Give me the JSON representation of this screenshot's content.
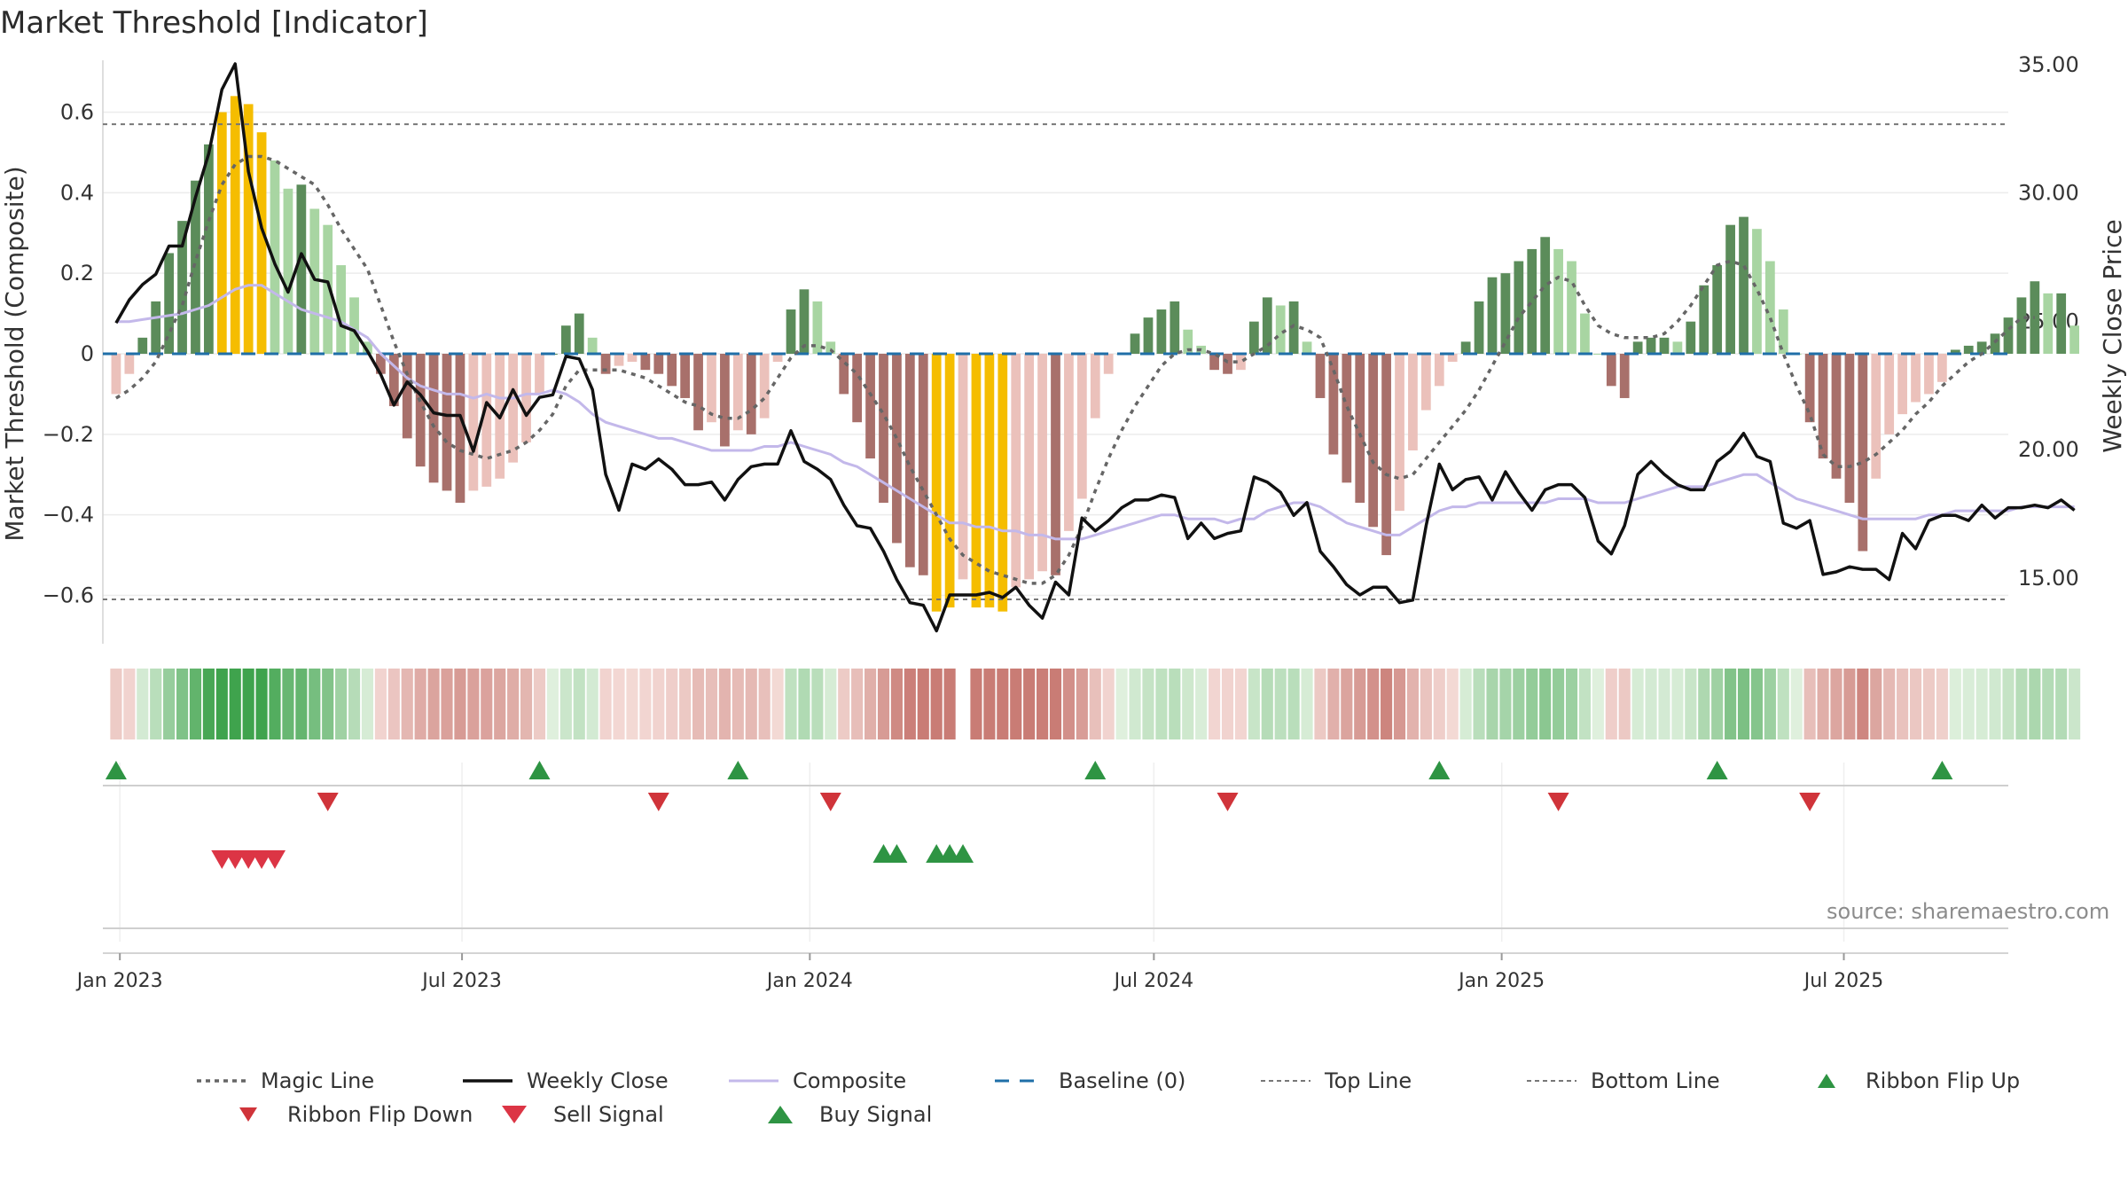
{
  "title": "Market Threshold [Indicator]",
  "source_text": "source: sharemaestro.com",
  "axes": {
    "left_label": "Market Threshold (Composite)",
    "right_label": "Weekly Close Price",
    "left_ticks": [
      "0.6",
      "0.4",
      "0.2",
      "0",
      "−0.2",
      "−0.4",
      "−0.6"
    ],
    "right_ticks": [
      "35.00",
      "30.00",
      "25.00",
      "20.00",
      "15.00"
    ],
    "x_ticks": [
      "Jan 2023",
      "Jul 2023",
      "Jan 2024",
      "Jul 2024",
      "Jan 2025",
      "Jul 2025"
    ]
  },
  "legend": [
    {
      "key": "magic",
      "label": "Magic Line"
    },
    {
      "key": "close",
      "label": "Weekly Close"
    },
    {
      "key": "composite",
      "label": "Composite"
    },
    {
      "key": "baseline",
      "label": "Baseline (0)"
    },
    {
      "key": "top",
      "label": "Top Line"
    },
    {
      "key": "bottom",
      "label": "Bottom Line"
    },
    {
      "key": "flipup",
      "label": "Ribbon Flip Up"
    },
    {
      "key": "flipdown",
      "label": "Ribbon Flip Down"
    },
    {
      "key": "sell",
      "label": "Sell Signal"
    },
    {
      "key": "buy",
      "label": "Buy Signal"
    }
  ],
  "colors": {
    "strong_green": "#5b8c5a",
    "light_green": "#a8d5a2",
    "strong_red": "#a8706b",
    "light_red": "#ebc1bb",
    "extreme": "#f5bd00",
    "close": "#111111",
    "composite": "#c3b8ea",
    "magic": "#666666",
    "baseline": "#1f6fa8",
    "threshold": "#777777",
    "up": "#2e9443",
    "down": "#d0343a"
  },
  "chart_data": {
    "type": "bar",
    "x_range": [
      "2022-12-23",
      "2025-09-26"
    ],
    "left_ylim": [
      -0.72,
      0.72
    ],
    "right_ylim": [
      12.4,
      35.0
    ],
    "threshold_top": 0.57,
    "threshold_bottom": -0.61,
    "series": [
      {
        "name": "Market Threshold (Composite)",
        "values": [
          -0.1,
          -0.05,
          0.04,
          0.13,
          0.25,
          0.33,
          0.43,
          0.52,
          0.6,
          0.64,
          0.62,
          0.55,
          0.48,
          0.41,
          0.42,
          0.36,
          0.32,
          0.22,
          0.14,
          0.03,
          -0.05,
          -0.13,
          -0.21,
          -0.28,
          -0.32,
          -0.34,
          -0.37,
          -0.34,
          -0.33,
          -0.31,
          -0.27,
          -0.22,
          -0.1,
          0.0,
          0.07,
          0.1,
          0.04,
          -0.05,
          -0.03,
          -0.02,
          -0.04,
          -0.05,
          -0.08,
          -0.11,
          -0.19,
          -0.17,
          -0.23,
          -0.19,
          -0.2,
          -0.16,
          -0.02,
          0.11,
          0.16,
          0.13,
          0.03,
          -0.1,
          -0.17,
          -0.26,
          -0.37,
          -0.47,
          -0.53,
          -0.55,
          -0.64,
          -0.63,
          -0.56,
          -0.63,
          -0.63,
          -0.64,
          -0.58,
          -0.56,
          -0.54,
          -0.55,
          -0.44,
          -0.36,
          -0.16,
          -0.05,
          0.0,
          0.05,
          0.09,
          0.11,
          0.13,
          0.06,
          0.02,
          -0.04,
          -0.05,
          -0.04,
          0.08,
          0.14,
          0.12,
          0.13,
          0.03,
          -0.11,
          -0.25,
          -0.32,
          -0.37,
          -0.43,
          -0.5,
          -0.39,
          -0.24,
          -0.14,
          -0.08,
          -0.02,
          0.03,
          0.13,
          0.19,
          0.2,
          0.23,
          0.26,
          0.29,
          0.26,
          0.23,
          0.1,
          0.0,
          -0.08,
          -0.11,
          0.03,
          0.04,
          0.04,
          0.03,
          0.08,
          0.17,
          0.22,
          0.32,
          0.34,
          0.31,
          0.23,
          0.11,
          0.0,
          -0.17,
          -0.26,
          -0.31,
          -0.37,
          -0.49,
          -0.31,
          -0.2,
          -0.15,
          -0.12,
          -0.1,
          -0.07,
          0.01,
          0.02,
          0.03,
          0.05,
          0.09,
          0.14,
          0.18,
          0.15,
          0.15,
          0.07
        ]
      },
      {
        "name": "Weekly Close",
        "values": [
          24.9,
          25.8,
          26.4,
          26.8,
          27.9,
          27.9,
          29.8,
          31.5,
          34.0,
          35.0,
          30.8,
          28.6,
          27.2,
          26.1,
          27.6,
          26.6,
          26.5,
          24.8,
          24.6,
          23.8,
          22.9,
          21.7,
          22.6,
          22.1,
          21.4,
          21.3,
          21.3,
          19.9,
          21.8,
          21.2,
          22.3,
          21.3,
          22.0,
          22.1,
          23.6,
          23.5,
          22.3,
          19.0,
          17.6,
          19.4,
          19.2,
          19.6,
          19.2,
          18.6,
          18.6,
          18.7,
          18.0,
          18.8,
          19.3,
          19.4,
          19.4,
          20.7,
          19.5,
          19.2,
          18.8,
          17.8,
          17.0,
          16.9,
          16.0,
          14.9,
          14.0,
          13.9,
          12.9,
          14.3,
          14.3,
          14.3,
          14.4,
          14.2,
          14.6,
          13.9,
          13.4,
          14.8,
          14.3,
          17.3,
          16.8,
          17.2,
          17.7,
          18.0,
          18.0,
          18.2,
          18.1,
          16.5,
          17.1,
          16.5,
          16.7,
          16.8,
          18.9,
          18.7,
          18.3,
          17.4,
          17.9,
          16.0,
          15.4,
          14.7,
          14.3,
          14.6,
          14.6,
          14.0,
          14.1,
          17.0,
          19.4,
          18.4,
          18.8,
          18.9,
          18.0,
          19.1,
          18.3,
          17.6,
          18.4,
          18.6,
          18.6,
          18.1,
          16.4,
          15.9,
          17.0,
          19.0,
          19.5,
          19.0,
          18.6,
          18.4,
          18.4,
          19.5,
          19.9,
          20.6,
          19.7,
          19.5,
          17.1,
          16.9,
          17.2,
          15.1,
          15.2,
          15.4,
          15.3,
          15.3,
          14.9,
          16.7,
          16.1,
          17.2,
          17.4,
          17.4,
          17.2,
          17.8,
          17.3,
          17.7,
          17.7,
          17.8,
          17.7,
          18.0,
          17.6
        ]
      },
      {
        "name": "Composite",
        "values": [
          0.08,
          0.08,
          0.085,
          0.09,
          0.095,
          0.1,
          0.11,
          0.12,
          0.14,
          0.16,
          0.17,
          0.17,
          0.15,
          0.13,
          0.11,
          0.1,
          0.09,
          0.08,
          0.06,
          0.04,
          0.0,
          -0.03,
          -0.06,
          -0.08,
          -0.09,
          -0.1,
          -0.1,
          -0.11,
          -0.1,
          -0.11,
          -0.11,
          -0.1,
          -0.1,
          -0.09,
          -0.1,
          -0.12,
          -0.15,
          -0.17,
          -0.18,
          -0.19,
          -0.2,
          -0.21,
          -0.21,
          -0.22,
          -0.23,
          -0.24,
          -0.24,
          -0.24,
          -0.24,
          -0.23,
          -0.23,
          -0.22,
          -0.23,
          -0.24,
          -0.25,
          -0.27,
          -0.28,
          -0.3,
          -0.32,
          -0.34,
          -0.36,
          -0.38,
          -0.4,
          -0.42,
          -0.42,
          -0.43,
          -0.43,
          -0.44,
          -0.44,
          -0.45,
          -0.45,
          -0.46,
          -0.46,
          -0.46,
          -0.45,
          -0.44,
          -0.43,
          -0.42,
          -0.41,
          -0.4,
          -0.4,
          -0.41,
          -0.41,
          -0.41,
          -0.42,
          -0.41,
          -0.41,
          -0.39,
          -0.38,
          -0.37,
          -0.37,
          -0.38,
          -0.4,
          -0.42,
          -0.43,
          -0.44,
          -0.45,
          -0.45,
          -0.43,
          -0.41,
          -0.39,
          -0.38,
          -0.38,
          -0.37,
          -0.37,
          -0.37,
          -0.37,
          -0.37,
          -0.37,
          -0.36,
          -0.36,
          -0.36,
          -0.37,
          -0.37,
          -0.37,
          -0.36,
          -0.35,
          -0.34,
          -0.33,
          -0.33,
          -0.33,
          -0.32,
          -0.31,
          -0.3,
          -0.3,
          -0.32,
          -0.34,
          -0.36,
          -0.37,
          -0.38,
          -0.39,
          -0.4,
          -0.41,
          -0.41,
          -0.41,
          -0.41,
          -0.41,
          -0.4,
          -0.4,
          -0.39,
          -0.39,
          -0.39,
          -0.39,
          -0.39,
          -0.38,
          -0.38,
          -0.38,
          -0.38,
          -0.38
        ]
      },
      {
        "name": "Magic Line",
        "values": [
          -0.11,
          -0.09,
          -0.06,
          -0.02,
          0.05,
          0.12,
          0.23,
          0.33,
          0.42,
          0.47,
          0.49,
          0.49,
          0.48,
          0.46,
          0.44,
          0.42,
          0.37,
          0.31,
          0.26,
          0.21,
          0.12,
          0.03,
          -0.05,
          -0.12,
          -0.18,
          -0.22,
          -0.24,
          -0.25,
          -0.26,
          -0.25,
          -0.24,
          -0.22,
          -0.19,
          -0.15,
          -0.08,
          -0.04,
          -0.04,
          -0.04,
          -0.04,
          -0.05,
          -0.06,
          -0.08,
          -0.1,
          -0.12,
          -0.13,
          -0.15,
          -0.16,
          -0.16,
          -0.14,
          -0.11,
          -0.06,
          -0.01,
          0.02,
          0.02,
          0.01,
          -0.02,
          -0.05,
          -0.1,
          -0.15,
          -0.21,
          -0.28,
          -0.34,
          -0.4,
          -0.46,
          -0.5,
          -0.52,
          -0.54,
          -0.55,
          -0.56,
          -0.57,
          -0.57,
          -0.55,
          -0.5,
          -0.43,
          -0.34,
          -0.26,
          -0.19,
          -0.13,
          -0.08,
          -0.03,
          0.0,
          0.01,
          0.01,
          0.0,
          -0.02,
          -0.02,
          0.0,
          0.02,
          0.05,
          0.07,
          0.06,
          0.04,
          -0.04,
          -0.13,
          -0.2,
          -0.27,
          -0.3,
          -0.31,
          -0.3,
          -0.26,
          -0.22,
          -0.18,
          -0.14,
          -0.09,
          -0.03,
          0.03,
          0.09,
          0.13,
          0.17,
          0.19,
          0.18,
          0.12,
          0.07,
          0.05,
          0.04,
          0.04,
          0.04,
          0.05,
          0.08,
          0.12,
          0.17,
          0.22,
          0.23,
          0.22,
          0.16,
          0.09,
          0.0,
          -0.08,
          -0.15,
          -0.25,
          -0.28,
          -0.28,
          -0.27,
          -0.25,
          -0.22,
          -0.19,
          -0.15,
          -0.12,
          -0.08,
          -0.05,
          -0.02,
          0.0,
          0.03,
          0.06,
          0.09,
          0.09
        ]
      },
      {
        "name": "Ribbon Flip Up",
        "values": [
          "2022-12-30",
          "2023-08-11",
          "2023-11-24",
          "2024-05-31",
          "2024-11-29",
          "2025-04-25",
          "2025-08-22"
        ]
      },
      {
        "name": "Ribbon Flip Down",
        "values": [
          "2023-04-21",
          "2023-10-13",
          "2024-01-12",
          "2024-08-09",
          "2025-01-31",
          "2025-06-13"
        ]
      },
      {
        "name": "Sell Signal",
        "values": [
          "2023-02-24",
          "2023-03-03",
          "2023-03-10",
          "2023-03-17",
          "2023-03-24"
        ]
      },
      {
        "name": "Buy Signal",
        "values": [
          "2024-02-09",
          "2024-02-16",
          "2024-03-08",
          "2024-03-15",
          "2024-03-22"
        ]
      }
    ]
  }
}
